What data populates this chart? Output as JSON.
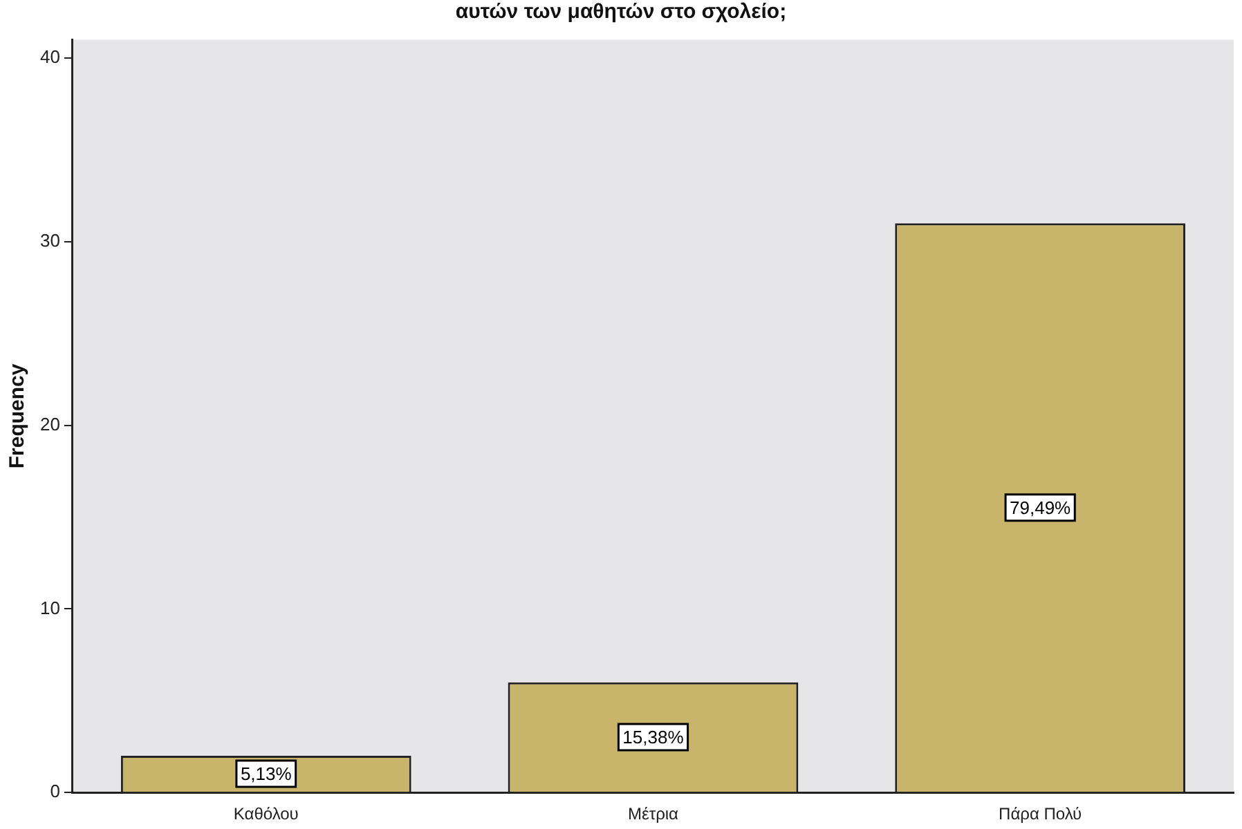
{
  "chart_data": {
    "type": "bar",
    "title": "αυτών των μαθητών στο σχολείο;",
    "ylabel": "Frequency",
    "categories": [
      "Καθόλου",
      "Μέτρια",
      "Πάρα Πολύ"
    ],
    "values": [
      2,
      6,
      31
    ],
    "color": "#c9b46c",
    "annotations": [
      "5,13%",
      "15,38%",
      "79,49%"
    ],
    "ylim": [
      0,
      41
    ],
    "yticks": [
      0,
      10,
      20,
      30,
      40
    ],
    "grid": false,
    "legend": false
  }
}
